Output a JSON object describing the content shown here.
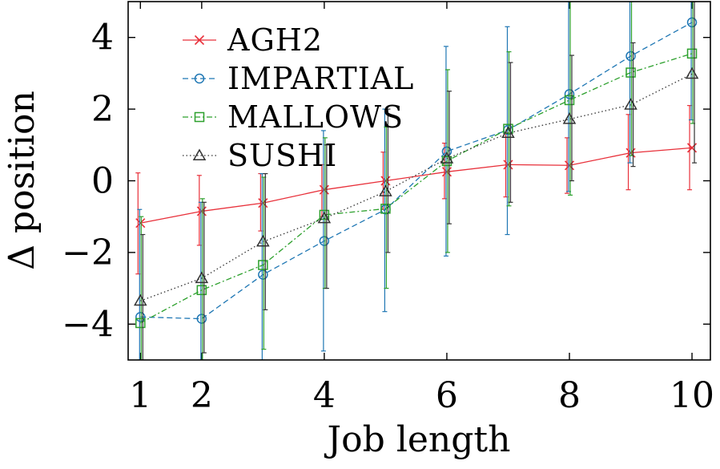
{
  "chart_data": {
    "type": "line",
    "title": "",
    "xlabel": "Job length",
    "ylabel": "Δ position",
    "xlim": [
      0.8,
      10.3
    ],
    "ylim": [
      -5,
      5
    ],
    "xticks": [
      1,
      2,
      4,
      6,
      8,
      10
    ],
    "yticks": [
      -4,
      -2,
      0,
      2,
      4
    ],
    "ytick_labels": [
      "−4",
      "−2",
      "0",
      "2",
      "4"
    ],
    "grid": false,
    "legend_position": "top-left",
    "x": [
      1,
      2,
      3,
      4,
      5,
      6,
      7,
      8,
      9,
      10
    ],
    "series": [
      {
        "name": "AGH2",
        "color": "#e8303a",
        "marker": "x",
        "line_style": "solid",
        "values": [
          -1.18,
          -0.85,
          -0.62,
          -0.25,
          0.0,
          0.25,
          0.45,
          0.43,
          0.78,
          0.92
        ],
        "err_low": [
          -2.6,
          -1.8,
          -1.4,
          -1.0,
          -0.8,
          -0.5,
          -0.45,
          -0.35,
          -0.25,
          -0.25
        ],
        "err_high": [
          0.22,
          0.15,
          0.2,
          0.45,
          0.8,
          1.05,
          1.35,
          1.2,
          1.85,
          2.1
        ]
      },
      {
        "name": "IMPARTIAL",
        "color": "#1f77b4",
        "marker": "o",
        "line_style": "dashed",
        "values": [
          -3.8,
          -3.85,
          -2.62,
          -1.68,
          -0.8,
          0.82,
          1.42,
          2.42,
          3.48,
          4.42
        ],
        "err_low": [
          -5.0,
          -5.0,
          -5.0,
          -4.75,
          -3.65,
          -2.1,
          -1.5,
          -0.3,
          0.5,
          1.7
        ],
        "err_high": [
          -0.8,
          -0.6,
          0.2,
          1.4,
          2.0,
          3.75,
          4.3,
          5.0,
          5.0,
          5.0
        ]
      },
      {
        "name": "MALLOWS",
        "color": "#2ca02c",
        "marker": "s",
        "line_style": "dashdot",
        "values": [
          -3.97,
          -3.05,
          -2.35,
          -0.95,
          -0.78,
          0.55,
          1.45,
          2.25,
          3.02,
          3.55
        ],
        "err_low": [
          -5.0,
          -5.0,
          -4.7,
          -3.0,
          -3.0,
          -2.0,
          -0.7,
          -0.4,
          0.7,
          1.6
        ],
        "err_high": [
          -1.0,
          -0.5,
          0.1,
          1.2,
          1.5,
          3.1,
          3.6,
          5.0,
          5.0,
          5.0
        ]
      },
      {
        "name": "SUSHI",
        "color": "#333333",
        "marker": "^",
        "line_style": "dotted",
        "values": [
          -3.35,
          -2.72,
          -1.7,
          -1.05,
          -0.3,
          0.62,
          1.33,
          1.72,
          2.12,
          2.98
        ],
        "err_low": [
          -5.0,
          -4.8,
          -3.6,
          -3.0,
          -2.0,
          -1.2,
          -0.6,
          0.0,
          0.4,
          0.5
        ],
        "err_high": [
          -1.5,
          -0.6,
          0.2,
          1.0,
          2.0,
          2.5,
          3.3,
          3.5,
          3.85,
          5.0
        ]
      }
    ]
  }
}
